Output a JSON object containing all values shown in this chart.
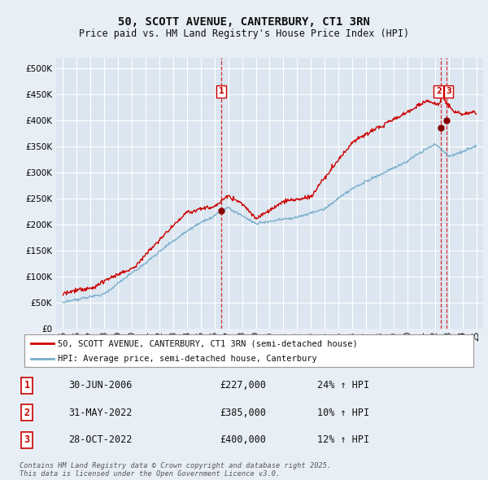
{
  "title": "50, SCOTT AVENUE, CANTERBURY, CT1 3RN",
  "subtitle": "Price paid vs. HM Land Registry's House Price Index (HPI)",
  "bg_color": "#e8eef5",
  "plot_bg_color": "#dce6f0",
  "grid_color": "#ffffff",
  "red_line_color": "#cc0000",
  "blue_line_color": "#7aaecc",
  "ylim": [
    0,
    520000
  ],
  "yticks": [
    0,
    50000,
    100000,
    150000,
    200000,
    250000,
    300000,
    350000,
    400000,
    450000,
    500000
  ],
  "ytick_labels": [
    "£0",
    "£50K",
    "£100K",
    "£150K",
    "£200K",
    "£250K",
    "£300K",
    "£350K",
    "£400K",
    "£450K",
    "£500K"
  ],
  "legend_line1": "50, SCOTT AVENUE, CANTERBURY, CT1 3RN (semi-detached house)",
  "legend_line2": "HPI: Average price, semi-detached house, Canterbury",
  "annotation1_date": "30-JUN-2006",
  "annotation1_price": "£227,000",
  "annotation1_hpi": "24% ↑ HPI",
  "annotation2_date": "31-MAY-2022",
  "annotation2_price": "£385,000",
  "annotation2_hpi": "10% ↑ HPI",
  "annotation3_date": "28-OCT-2022",
  "annotation3_price": "£400,000",
  "annotation3_hpi": "12% ↑ HPI",
  "footer": "Contains HM Land Registry data © Crown copyright and database right 2025.\nThis data is licensed under the Open Government Licence v3.0.",
  "sale1_year": 2006.5,
  "sale2_year": 2022.42,
  "sale3_year": 2022.83,
  "sale1_price": 227000,
  "sale2_price": 385000,
  "sale3_price": 400000
}
